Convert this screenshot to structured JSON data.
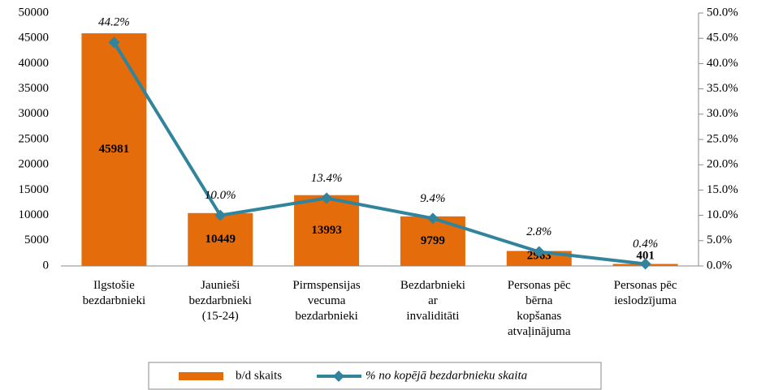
{
  "chart_data": {
    "type": "bar_line",
    "categories": [
      "Ilgstošie\nbezdarbnieki",
      "Jaunieši\nbezdarbnieki\n(15-24)",
      "Pirmspensijas\nvecuma\nbezdarbnieki",
      "Bezdarbnieki\nar\ninvaliditāti",
      "Personas pēc\nbērna\nkopšanas\natvaļinājuma",
      "Personas pēc\nieslodzījuma"
    ],
    "series": [
      {
        "name": "b/d skaits",
        "type": "bar",
        "color": "#e46c0a",
        "values": [
          45981,
          10449,
          13993,
          9799,
          2963,
          401
        ]
      },
      {
        "name": "% no kopējā bezdarbnieku skaita",
        "type": "line",
        "axis": "y2",
        "color": "#31849b",
        "values": [
          44.2,
          10.0,
          13.4,
          9.4,
          2.8,
          0.4
        ],
        "value_labels": [
          "44.2%",
          "10.0%",
          "13.4%",
          "9.4%",
          "2.8%",
          "0.4%"
        ]
      }
    ],
    "ylim": [
      0,
      50000
    ],
    "yticks": [
      0,
      5000,
      10000,
      15000,
      20000,
      25000,
      30000,
      35000,
      40000,
      45000,
      50000
    ],
    "y2lim": [
      0,
      50
    ],
    "y2ticks": [
      {
        "value": 0,
        "label": "0.0%"
      },
      {
        "value": 5,
        "label": "5.0%"
      },
      {
        "value": 10,
        "label": "10.0%"
      },
      {
        "value": 15,
        "label": "15.0%"
      },
      {
        "value": 20,
        "label": "20.0%"
      },
      {
        "value": 25,
        "label": "25.0%"
      },
      {
        "value": 30,
        "label": "30.0%"
      },
      {
        "value": 35,
        "label": "35.0%"
      },
      {
        "value": 40,
        "label": "40.0%"
      },
      {
        "value": 45,
        "label": "45.0%"
      },
      {
        "value": 50,
        "label": "50.0%"
      }
    ],
    "legend": "bottom"
  }
}
